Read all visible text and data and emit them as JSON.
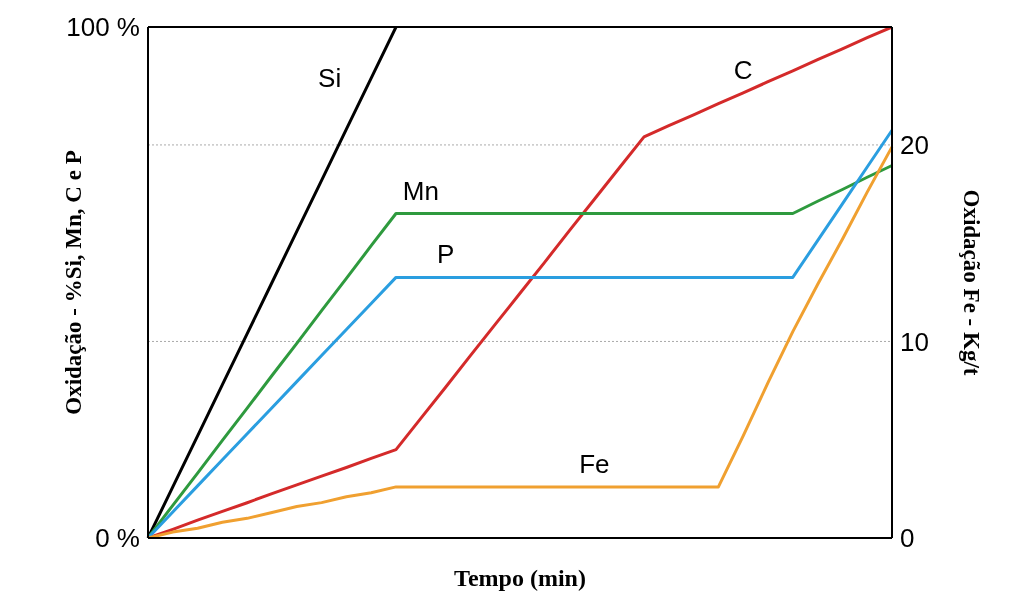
{
  "chart_data": {
    "type": "line",
    "xlabel": "Tempo (min)",
    "ylabel": "Oxidação - %Si, Mn, C e P",
    "y2label": "Oxidação Fe - Kg/t",
    "categories": [
      null,
      null,
      null,
      null,
      null,
      null,
      null,
      null,
      null,
      null,
      null,
      null,
      null,
      null,
      null,
      null,
      null,
      null,
      null,
      null,
      null,
      null,
      null,
      null,
      null,
      null,
      null,
      null,
      null,
      null,
      null
    ],
    "ylim": [
      0,
      100
    ],
    "yticks": [
      {
        "value": 0,
        "label": "0 %"
      },
      {
        "value": 100,
        "label": "100 %"
      }
    ],
    "y2lim": [
      0,
      26
    ],
    "y2ticks": [
      0,
      10,
      20
    ],
    "grid": "y2",
    "tick_labels": "y",
    "line_style": "solid",
    "marker": "none",
    "series": [
      {
        "name": "Si",
        "color": "#000000",
        "values": [
          0,
          10,
          20,
          30,
          40,
          50,
          60,
          70,
          80,
          90,
          100,
          null,
          null,
          null,
          null,
          null,
          null,
          null,
          null,
          null,
          null,
          null,
          null,
          null,
          null,
          null,
          null,
          null,
          null,
          null,
          null
        ]
      },
      {
        "name": "C",
        "color": "#d42a2a",
        "values": [
          0,
          1.7,
          3.5,
          5.2,
          6.9,
          8.7,
          10.4,
          12.1,
          13.8,
          15.6,
          17.3,
          23.4,
          29.5,
          35.7,
          41.8,
          47.9,
          54.0,
          60.2,
          66.3,
          72.4,
          78.5,
          80.7,
          82.8,
          85.0,
          87.1,
          89.3,
          91.4,
          93.6,
          95.7,
          97.9,
          100
        ]
      },
      {
        "name": "Mn",
        "color": "#2e9a3e",
        "values": [
          0,
          6.4,
          12.7,
          19.1,
          25.4,
          31.8,
          38.1,
          44.5,
          50.8,
          57.2,
          63.5,
          63.5,
          63.5,
          63.5,
          63.5,
          63.5,
          63.5,
          63.5,
          63.5,
          63.5,
          63.5,
          63.5,
          63.5,
          63.5,
          63.5,
          63.5,
          63.5,
          65.9,
          68.2,
          70.6,
          72.9
        ]
      },
      {
        "name": "P",
        "color": "#2a9ee0",
        "values": [
          0,
          5.1,
          10.2,
          15.3,
          20.4,
          25.5,
          30.6,
          35.7,
          40.8,
          45.9,
          51,
          51,
          51,
          51,
          51,
          51,
          51,
          51,
          51,
          51,
          51,
          51,
          51,
          51,
          51,
          51,
          51,
          58.2,
          65.4,
          72.6,
          79.8
        ]
      },
      {
        "name": "Fe",
        "color": "#f0a030",
        "axis": "y2",
        "values": [
          0,
          0.3,
          0.5,
          0.8,
          1.0,
          1.3,
          1.6,
          1.8,
          2.1,
          2.3,
          2.6,
          2.6,
          2.6,
          2.6,
          2.6,
          2.6,
          2.6,
          2.6,
          2.6,
          2.6,
          2.6,
          2.6,
          2.6,
          2.6,
          5.2,
          7.9,
          10.5,
          12.9,
          15.2,
          17.6,
          19.9
        ]
      }
    ]
  }
}
